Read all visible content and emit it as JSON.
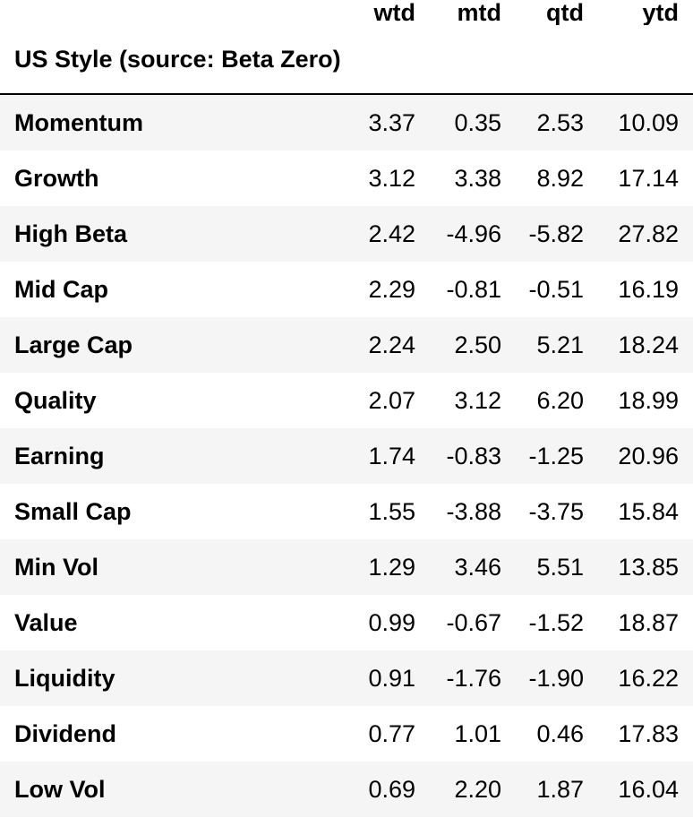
{
  "table": {
    "columns": [
      "wtd",
      "mtd",
      "qtd",
      "ytd"
    ],
    "index_name": "US Style (source: Beta Zero)",
    "rows": [
      {
        "label": "Momentum",
        "wtd": "3.37",
        "mtd": "0.35",
        "qtd": "2.53",
        "ytd": "10.09"
      },
      {
        "label": "Growth",
        "wtd": "3.12",
        "mtd": "3.38",
        "qtd": "8.92",
        "ytd": "17.14"
      },
      {
        "label": "High Beta",
        "wtd": "2.42",
        "mtd": "-4.96",
        "qtd": "-5.82",
        "ytd": "27.82"
      },
      {
        "label": "Mid Cap",
        "wtd": "2.29",
        "mtd": "-0.81",
        "qtd": "-0.51",
        "ytd": "16.19"
      },
      {
        "label": "Large Cap",
        "wtd": "2.24",
        "mtd": "2.50",
        "qtd": "5.21",
        "ytd": "18.24"
      },
      {
        "label": "Quality",
        "wtd": "2.07",
        "mtd": "3.12",
        "qtd": "6.20",
        "ytd": "18.99"
      },
      {
        "label": "Earning",
        "wtd": "1.74",
        "mtd": "-0.83",
        "qtd": "-1.25",
        "ytd": "20.96"
      },
      {
        "label": "Small Cap",
        "wtd": "1.55",
        "mtd": "-3.88",
        "qtd": "-3.75",
        "ytd": "15.84"
      },
      {
        "label": "Min Vol",
        "wtd": "1.29",
        "mtd": "3.46",
        "qtd": "5.51",
        "ytd": "13.85"
      },
      {
        "label": "Value",
        "wtd": "0.99",
        "mtd": "-0.67",
        "qtd": "-1.52",
        "ytd": "18.87"
      },
      {
        "label": "Liquidity",
        "wtd": "0.91",
        "mtd": "-1.76",
        "qtd": "-1.90",
        "ytd": "16.22"
      },
      {
        "label": "Dividend",
        "wtd": "0.77",
        "mtd": "1.01",
        "qtd": "0.46",
        "ytd": "17.83"
      },
      {
        "label": "Low Vol",
        "wtd": "0.69",
        "mtd": "2.20",
        "qtd": "1.87",
        "ytd": "16.04"
      }
    ]
  },
  "colors": {
    "text": "#000000",
    "row_stripe": "#f5f5f5",
    "background": "#ffffff",
    "rule": "#000000"
  }
}
